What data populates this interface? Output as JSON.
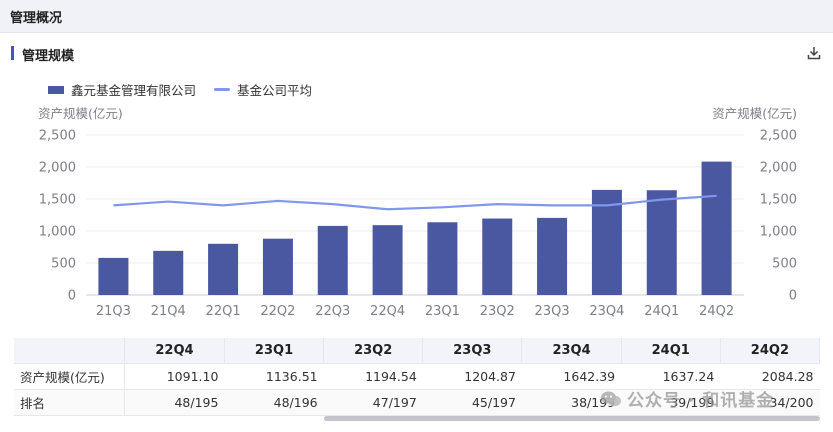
{
  "header": {
    "title": "管理概况"
  },
  "section": {
    "title": "管理规模"
  },
  "icons": {
    "download": "download-icon",
    "watermark": "wechat-icon"
  },
  "colors": {
    "bar": "#4a57a1",
    "line": "#8097ee",
    "grid": "#ececf2",
    "axis_text": "#7c7f88"
  },
  "chart_data": {
    "type": "bar",
    "categories": [
      "21Q3",
      "21Q4",
      "22Q1",
      "22Q2",
      "22Q3",
      "22Q4",
      "23Q1",
      "23Q2",
      "23Q3",
      "23Q4",
      "24Q1",
      "24Q2"
    ],
    "series": [
      {
        "name": "鑫元基金管理有限公司",
        "type": "bar",
        "values": [
          580,
          690,
          800,
          880,
          1080,
          1091.1,
          1136.51,
          1194.54,
          1204.87,
          1642.39,
          1637.24,
          2084.28
        ]
      },
      {
        "name": "基金公司平均",
        "type": "line",
        "values": [
          1400,
          1460,
          1400,
          1470,
          1420,
          1340,
          1370,
          1420,
          1400,
          1400,
          1490,
          1550
        ]
      }
    ],
    "ylabel_left": "资产规模(亿元)",
    "ylabel_right": "资产规模(亿元)",
    "yticks": [
      "0",
      "500",
      "1,000",
      "1,500",
      "2,000",
      "2,500"
    ],
    "ylim": [
      0,
      2500
    ],
    "grid": true,
    "legend": "top-left"
  },
  "table": {
    "columns": [
      "22Q4",
      "23Q1",
      "23Q2",
      "23Q3",
      "23Q4",
      "24Q1",
      "24Q2"
    ],
    "rows": [
      {
        "label": "资产规模(亿元)",
        "cells": [
          "1091.10",
          "1136.51",
          "1194.54",
          "1204.87",
          "1642.39",
          "1637.24",
          "2084.28"
        ]
      },
      {
        "label": "排名",
        "cells": [
          "48/195",
          "48/196",
          "47/197",
          "45/197",
          "38/199",
          "39/199",
          "34/200"
        ]
      }
    ]
  },
  "watermark": {
    "text": "公众号 · 和讯基金"
  }
}
